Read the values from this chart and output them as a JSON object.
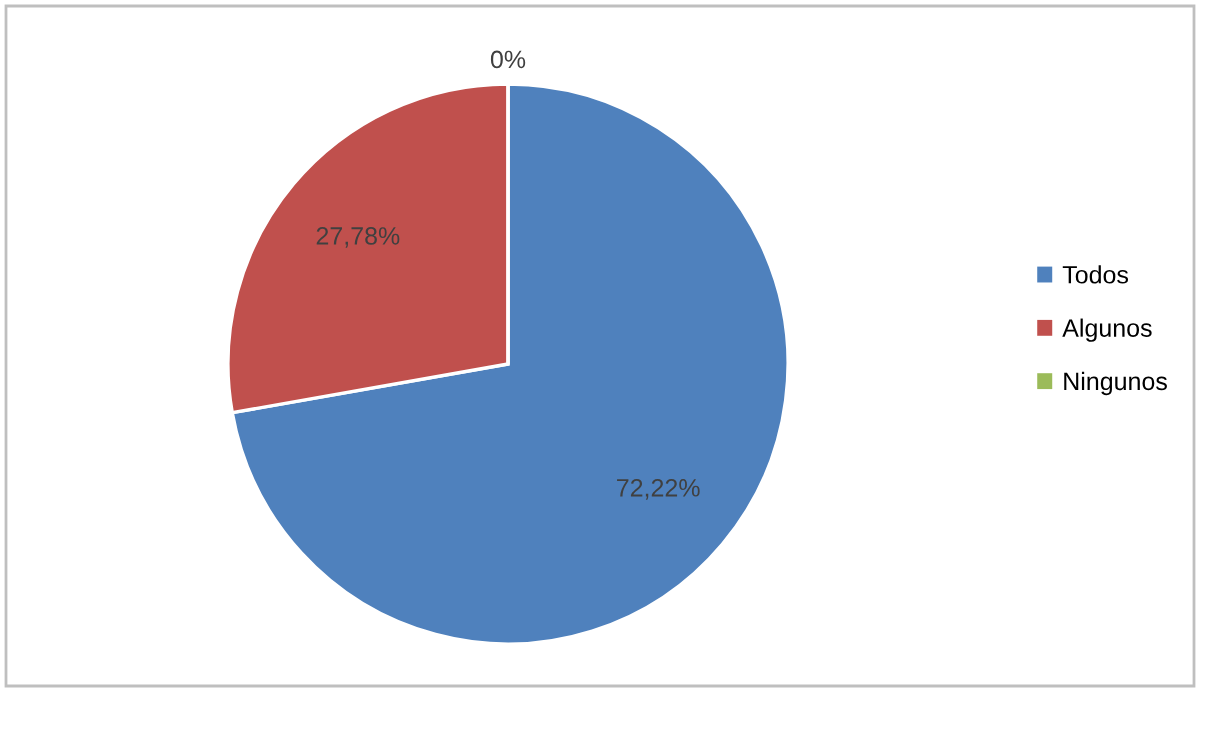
{
  "chart_data": {
    "type": "pie",
    "categories": [
      "Todos",
      "Algunos",
      "Ningunos"
    ],
    "values": [
      72.22,
      27.78,
      0
    ],
    "colors": [
      "#4f81bd",
      "#c0504d",
      "#9bbb59"
    ],
    "value_labels": [
      "72,22%",
      "27,78%",
      "0%"
    ],
    "legend": "right"
  }
}
